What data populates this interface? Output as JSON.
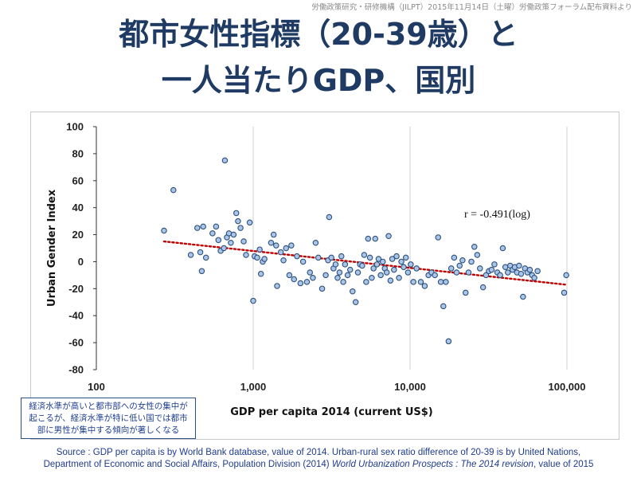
{
  "header_note": "労働政策研究・研修機構（JILPT）2015年11月14日（土曜）労働政策フォーラム配布資料より",
  "title_line1": "都市女性指標（20-39歳）と",
  "title_line2": "一人当たりGDP、国別",
  "note_box": {
    "line1": "経済水準が高いと都市部への女性の集中が",
    "line2": "起こるが、経済水準が特に低い国では都市",
    "line3": "部に男性が集中する傾向が著しくなる"
  },
  "source": {
    "line1": "Source : GDP per capita is by World Bank database, value of 2014. Urban-rural sex ratio difference of 20-39 is by United Nations,",
    "line2_a": "Department of Economic and Social Affairs, Population Division (2014) ",
    "line2_italic": "World Urbanization Prospects : The 2014 revision",
    "line2_b": ", value of 2015"
  },
  "colors": {
    "title": "#1f3b63",
    "point_fill": "#a9c6e8",
    "point_stroke": "#2d4f7c",
    "trend": "#c00000",
    "note": "#1f3f8f"
  },
  "chart_data": {
    "type": "scatter",
    "xlabel": "GDP per capita 2014 (current US$)",
    "ylabel": "Urban Gender Index",
    "x_scale": "log",
    "xlim": [
      100,
      100000
    ],
    "ylim": [
      -80,
      100
    ],
    "x_ticks": [
      100,
      1000,
      10000,
      100000
    ],
    "x_tick_labels": [
      "100",
      "1,000",
      "10,000",
      "100,000"
    ],
    "y_ticks": [
      -80,
      -60,
      -40,
      -20,
      0,
      20,
      40,
      60,
      80,
      100
    ],
    "y_tick_labels": [
      "-80",
      "-60",
      "-40",
      "-20",
      "0",
      "20",
      "40",
      "60",
      "80",
      "100"
    ],
    "grid": "vertical-major",
    "annotation": "r = -0.491(log)",
    "trendline": {
      "x": [
        270,
        98000
      ],
      "y": [
        15,
        -17
      ]
    },
    "points": [
      [
        270,
        23
      ],
      [
        310,
        53
      ],
      [
        400,
        5
      ],
      [
        440,
        25
      ],
      [
        460,
        7
      ],
      [
        470,
        -7
      ],
      [
        480,
        26
      ],
      [
        500,
        3
      ],
      [
        550,
        21
      ],
      [
        580,
        26
      ],
      [
        600,
        16
      ],
      [
        620,
        8
      ],
      [
        650,
        10
      ],
      [
        660,
        75
      ],
      [
        680,
        18
      ],
      [
        700,
        21
      ],
      [
        720,
        14
      ],
      [
        750,
        20
      ],
      [
        780,
        36
      ],
      [
        800,
        30
      ],
      [
        830,
        25
      ],
      [
        870,
        15
      ],
      [
        900,
        5
      ],
      [
        950,
        29
      ],
      [
        1000,
        -29
      ],
      [
        1020,
        4
      ],
      [
        1060,
        3
      ],
      [
        1100,
        9
      ],
      [
        1120,
        -9
      ],
      [
        1150,
        0
      ],
      [
        1180,
        2
      ],
      [
        1300,
        14
      ],
      [
        1350,
        20
      ],
      [
        1400,
        12
      ],
      [
        1420,
        -18
      ],
      [
        1500,
        7
      ],
      [
        1560,
        1
      ],
      [
        1620,
        10
      ],
      [
        1700,
        -10
      ],
      [
        1750,
        12
      ],
      [
        1820,
        -13
      ],
      [
        1900,
        4
      ],
      [
        2000,
        -16
      ],
      [
        2080,
        0
      ],
      [
        2200,
        -15
      ],
      [
        2300,
        -8
      ],
      [
        2400,
        -12
      ],
      [
        2500,
        14
      ],
      [
        2600,
        3
      ],
      [
        2750,
        -20
      ],
      [
        2900,
        -10
      ],
      [
        3000,
        1
      ],
      [
        3050,
        33
      ],
      [
        3150,
        3
      ],
      [
        3250,
        -5
      ],
      [
        3350,
        -2
      ],
      [
        3450,
        -12
      ],
      [
        3550,
        -8
      ],
      [
        3650,
        4
      ],
      [
        3750,
        -15
      ],
      [
        3850,
        -2
      ],
      [
        4000,
        -10
      ],
      [
        4150,
        -6
      ],
      [
        4300,
        -22
      ],
      [
        4500,
        -30
      ],
      [
        4650,
        -8
      ],
      [
        4800,
        -2
      ],
      [
        4950,
        -3
      ],
      [
        5100,
        5
      ],
      [
        5250,
        -15
      ],
      [
        5400,
        17
      ],
      [
        5550,
        3
      ],
      [
        5700,
        -12
      ],
      [
        5850,
        -5
      ],
      [
        6000,
        17
      ],
      [
        6150,
        -2
      ],
      [
        6300,
        2
      ],
      [
        6500,
        -10
      ],
      [
        6700,
        0
      ],
      [
        6900,
        -5
      ],
      [
        7100,
        -8
      ],
      [
        7300,
        19
      ],
      [
        7500,
        -14
      ],
      [
        7700,
        2
      ],
      [
        7900,
        -6
      ],
      [
        8200,
        4
      ],
      [
        8500,
        -12
      ],
      [
        8800,
        0
      ],
      [
        9100,
        -4
      ],
      [
        9400,
        3
      ],
      [
        9700,
        -8
      ],
      [
        10100,
        -2
      ],
      [
        10500,
        -15
      ],
      [
        11000,
        -5
      ],
      [
        11700,
        -15
      ],
      [
        12400,
        -18
      ],
      [
        13100,
        -10
      ],
      [
        13700,
        -8
      ],
      [
        14400,
        -10
      ],
      [
        15100,
        18
      ],
      [
        15700,
        -15
      ],
      [
        16300,
        -33
      ],
      [
        16900,
        -15
      ],
      [
        17600,
        -59
      ],
      [
        18300,
        -5
      ],
      [
        19100,
        3
      ],
      [
        19800,
        -8
      ],
      [
        20700,
        -3
      ],
      [
        21600,
        1
      ],
      [
        22600,
        -23
      ],
      [
        23600,
        -8
      ],
      [
        24600,
        0
      ],
      [
        25700,
        11
      ],
      [
        26800,
        5
      ],
      [
        27900,
        -5
      ],
      [
        29200,
        -19
      ],
      [
        30500,
        -10
      ],
      [
        31800,
        -7
      ],
      [
        33100,
        -6
      ],
      [
        34500,
        -2
      ],
      [
        36000,
        -8
      ],
      [
        37500,
        -10
      ],
      [
        39000,
        10
      ],
      [
        40500,
        -4
      ],
      [
        42000,
        -8
      ],
      [
        43500,
        -3
      ],
      [
        45000,
        -6
      ],
      [
        46500,
        -4
      ],
      [
        48000,
        -8
      ],
      [
        49500,
        -3
      ],
      [
        51000,
        -9
      ],
      [
        52500,
        -26
      ],
      [
        54000,
        -5
      ],
      [
        56000,
        -8
      ],
      [
        58000,
        -6
      ],
      [
        60000,
        -10
      ],
      [
        62000,
        -12
      ],
      [
        65000,
        -7
      ],
      [
        96000,
        -23
      ],
      [
        99000,
        -10
      ]
    ]
  }
}
